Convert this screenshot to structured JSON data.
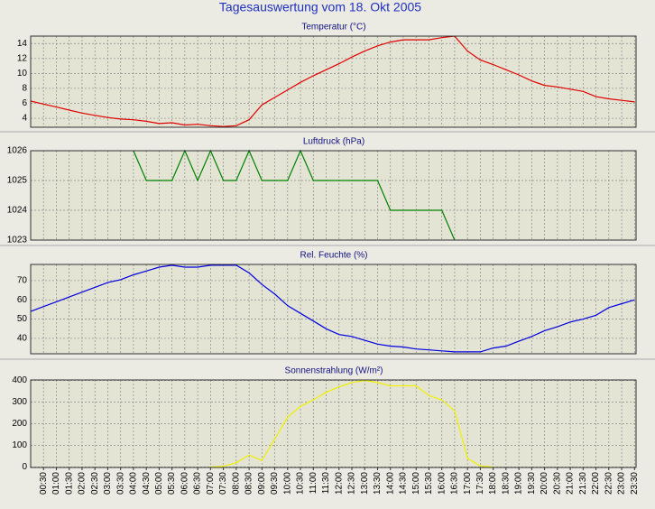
{
  "title": "Tagesauswertung vom 18. Okt 2005",
  "chart_data": [
    {
      "type": "line",
      "title": "Temperatur (°C)",
      "color": "#e00000",
      "grid": true,
      "x": [
        0,
        0.5,
        1,
        1.5,
        2,
        2.5,
        3,
        3.5,
        4,
        4.5,
        5,
        5.5,
        6,
        6.5,
        7,
        7.5,
        8,
        8.5,
        9,
        9.5,
        10,
        10.5,
        11,
        11.5,
        12,
        12.5,
        13,
        13.5,
        14,
        14.5,
        15,
        15.5,
        16,
        16.5,
        17,
        17.5,
        18,
        18.5,
        19,
        19.5,
        20,
        20.5,
        21,
        21.5,
        22,
        22.5,
        23,
        23.5
      ],
      "values": [
        6.3,
        5.9,
        5.5,
        5.1,
        4.7,
        4.4,
        4.1,
        3.9,
        3.8,
        3.6,
        3.3,
        3.4,
        3.1,
        3.2,
        3.0,
        2.9,
        3.0,
        3.8,
        5.8,
        6.8,
        7.8,
        8.8,
        9.7,
        10.5,
        11.3,
        12.2,
        13.0,
        13.7,
        14.2,
        14.5,
        14.5,
        14.5,
        14.8,
        15.0,
        13.0,
        11.8,
        11.2,
        10.5,
        9.8,
        9.0,
        8.4,
        8.2,
        7.9,
        7.6,
        6.9,
        6.6,
        6.4,
        6.2
      ],
      "xlim": [
        0,
        23.56
      ],
      "ylim": [
        2.8,
        15
      ],
      "yticks": [
        4,
        6,
        8,
        10,
        12,
        14
      ]
    },
    {
      "type": "line",
      "title": "Luftdruck (hPa)",
      "color": "#008000",
      "grid": true,
      "x": [
        0,
        0.5,
        1,
        1.5,
        2,
        2.5,
        3,
        3.5,
        4,
        4.5,
        5,
        5.5,
        6,
        6.5,
        7,
        7.5,
        8,
        8.5,
        9,
        9.5,
        10,
        10.5,
        11,
        11.5,
        12,
        12.5,
        13,
        13.5,
        14,
        14.5,
        15,
        15.5,
        16,
        16.5,
        17,
        17.5,
        18,
        18.5,
        19,
        19.5,
        20,
        20.5,
        21,
        21.5,
        22,
        22.5,
        23,
        23.5
      ],
      "values": [
        null,
        null,
        null,
        null,
        null,
        null,
        null,
        null,
        1026,
        1025,
        1025,
        1025,
        1026,
        1025,
        1026,
        1025,
        1025,
        1026,
        1025,
        1025,
        1025,
        1026,
        1025,
        1025,
        1025,
        1025,
        1025,
        1025,
        1024,
        1024,
        1024,
        1024,
        1024,
        1023,
        null,
        null,
        null,
        null,
        null,
        null,
        null,
        null,
        null,
        null,
        null,
        null,
        null,
        null
      ],
      "xlim": [
        0,
        23.56
      ],
      "ylim": [
        1023,
        1026
      ],
      "yticks": [
        1023,
        1024,
        1025,
        1026
      ]
    },
    {
      "type": "line",
      "title": "Rel. Feuchte (%)",
      "color": "#0000e0",
      "grid": true,
      "x": [
        0,
        0.5,
        1,
        1.5,
        2,
        2.5,
        3,
        3.5,
        4,
        4.5,
        5,
        5.5,
        6,
        6.5,
        7,
        7.5,
        8,
        8.5,
        9,
        9.5,
        10,
        10.5,
        11,
        11.5,
        12,
        12.5,
        13,
        13.5,
        14,
        14.5,
        15,
        15.5,
        16,
        16.5,
        17,
        17.5,
        18,
        18.5,
        19,
        19.5,
        20,
        20.5,
        21,
        21.5,
        22,
        22.5,
        23,
        23.5
      ],
      "values": [
        54,
        56.5,
        59,
        61.5,
        64,
        66.5,
        69,
        70.5,
        73,
        75,
        77,
        78,
        77,
        77,
        78,
        78,
        78,
        74,
        68,
        63,
        57,
        53,
        49,
        45,
        42,
        41,
        39,
        37,
        36,
        35.5,
        34.5,
        34,
        33.5,
        33,
        33,
        33,
        35,
        36,
        38.5,
        41,
        44,
        46,
        48.5,
        50,
        52,
        56,
        58,
        60
      ],
      "xlim": [
        0,
        23.56
      ],
      "ylim": [
        32,
        78.4
      ],
      "yticks": [
        40,
        50,
        60,
        70
      ]
    },
    {
      "type": "line",
      "title": "Sonnenstrahlung (W/m²)",
      "color": "#f0f000",
      "grid": true,
      "x": [
        0,
        0.5,
        1,
        1.5,
        2,
        2.5,
        3,
        3.5,
        4,
        4.5,
        5,
        5.5,
        6,
        6.5,
        7,
        7.5,
        8,
        8.5,
        9,
        9.5,
        10,
        10.5,
        11,
        11.5,
        12,
        12.5,
        13,
        13.5,
        14,
        14.5,
        15,
        15.5,
        16,
        16.5,
        17,
        17.5,
        18,
        18.5,
        19,
        19.5,
        20,
        20.5,
        21,
        21.5,
        22,
        22.5,
        23,
        23.5
      ],
      "values": [
        null,
        null,
        null,
        null,
        null,
        null,
        null,
        null,
        null,
        null,
        null,
        null,
        null,
        null,
        0,
        3,
        20,
        55,
        30,
        130,
        230,
        280,
        310,
        345,
        370,
        390,
        400,
        390,
        375,
        375,
        375,
        330,
        310,
        260,
        40,
        5,
        0,
        null,
        null,
        null,
        null,
        null,
        null,
        null,
        null,
        null,
        null,
        null
      ],
      "xlim": [
        0,
        23.56
      ],
      "ylim": [
        -2,
        402
      ],
      "yticks": [
        0,
        100,
        200,
        300,
        400
      ],
      "xticks": [
        {
          "value": 0.5,
          "label": "00:30"
        },
        {
          "value": 1,
          "label": "01:00"
        },
        {
          "value": 1.5,
          "label": "01:30"
        },
        {
          "value": 2,
          "label": "02:00"
        },
        {
          "value": 2.5,
          "label": "02:30"
        },
        {
          "value": 3,
          "label": "03:00"
        },
        {
          "value": 3.5,
          "label": "03:30"
        },
        {
          "value": 4,
          "label": "04:00"
        },
        {
          "value": 4.5,
          "label": "04:30"
        },
        {
          "value": 5,
          "label": "05:00"
        },
        {
          "value": 5.5,
          "label": "05:30"
        },
        {
          "value": 6,
          "label": "06:00"
        },
        {
          "value": 6.5,
          "label": "06:30"
        },
        {
          "value": 7,
          "label": "07:00"
        },
        {
          "value": 7.5,
          "label": "07:30"
        },
        {
          "value": 8,
          "label": "08:00"
        },
        {
          "value": 8.5,
          "label": "08:30"
        },
        {
          "value": 9,
          "label": "09:00"
        },
        {
          "value": 9.5,
          "label": "09:30"
        },
        {
          "value": 10,
          "label": "10:00"
        },
        {
          "value": 10.5,
          "label": "10:30"
        },
        {
          "value": 11,
          "label": "11:00"
        },
        {
          "value": 11.5,
          "label": "11:30"
        },
        {
          "value": 12,
          "label": "12:00"
        },
        {
          "value": 12.5,
          "label": "12:30"
        },
        {
          "value": 13,
          "label": "13:00"
        },
        {
          "value": 13.5,
          "label": "13:30"
        },
        {
          "value": 14,
          "label": "14:00"
        },
        {
          "value": 14.5,
          "label": "14:30"
        },
        {
          "value": 15,
          "label": "15:00"
        },
        {
          "value": 15.5,
          "label": "15:30"
        },
        {
          "value": 16,
          "label": "16:00"
        },
        {
          "value": 16.5,
          "label": "16:30"
        },
        {
          "value": 17,
          "label": "17:00"
        },
        {
          "value": 17.5,
          "label": "17:30"
        },
        {
          "value": 18,
          "label": "18:00"
        },
        {
          "value": 18.5,
          "label": "18:30"
        },
        {
          "value": 19,
          "label": "19:00"
        },
        {
          "value": 19.5,
          "label": "19:30"
        },
        {
          "value": 20,
          "label": "20:00"
        },
        {
          "value": 20.5,
          "label": "20:30"
        },
        {
          "value": 21,
          "label": "21:00"
        },
        {
          "value": 21.5,
          "label": "21:30"
        },
        {
          "value": 22,
          "label": "22:00"
        },
        {
          "value": 22.5,
          "label": "22:30"
        },
        {
          "value": 23,
          "label": "23:00"
        },
        {
          "value": 23.5,
          "label": "23:30"
        }
      ]
    }
  ]
}
